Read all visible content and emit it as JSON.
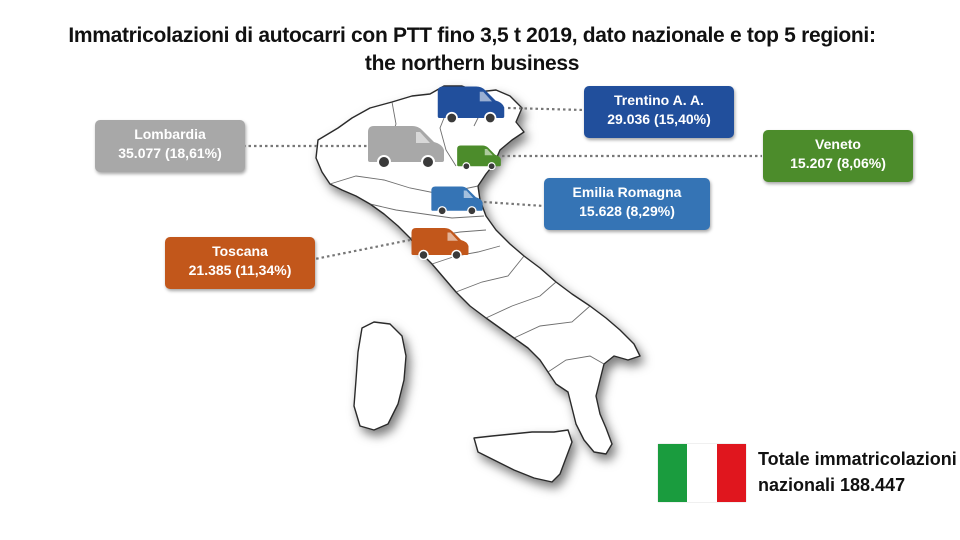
{
  "title": {
    "line1": "Immatricolazioni di autocarri con PTT fino 3,5 t  2019, dato nazionale e top 5 regioni:",
    "line2": "the northern business"
  },
  "regions": [
    {
      "id": "lombardia",
      "name": "Lombardia",
      "value": "35.077 (18,61%)",
      "color": "#a8a8a8"
    },
    {
      "id": "trentino",
      "name": "Trentino A. A.",
      "value": "29.036 (15,40%)",
      "color": "#214f9c"
    },
    {
      "id": "veneto",
      "name": "Veneto",
      "value": "15.207 (8,06%)",
      "color": "#4c8c2b"
    },
    {
      "id": "emilia",
      "name": "Emilia Romagna",
      "value": "15.628 (8,29%)",
      "color": "#3574b5"
    },
    {
      "id": "toscana",
      "name": "Toscana",
      "value": "21.385 (11,34%)",
      "color": "#c2571b"
    }
  ],
  "icons": {
    "map": "italy-map-icon",
    "vehicle": "van-icon",
    "flag": "italian-flag-icon"
  },
  "flag_colors": [
    "#1a9c3e",
    "#ffffff",
    "#e0161e"
  ],
  "total": {
    "line1": "Totale immatricolazioni",
    "line2": "nazionali 188.447"
  }
}
